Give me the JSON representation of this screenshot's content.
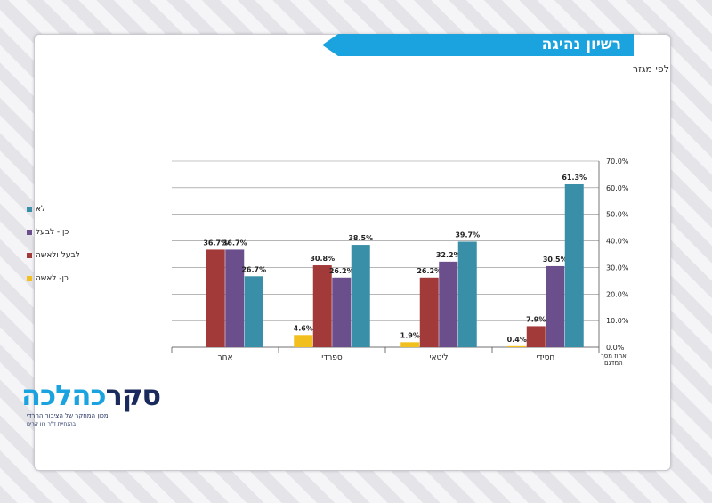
{
  "title": "רשיון נהיגה",
  "subtitle": "לפי מגזר",
  "logo": {
    "text_dark": "סקר",
    "text_accent": "כהלכה",
    "tagline": "מכון המחקר של הציבור החרדי",
    "credit": "בהנחיית ד\"ר רון קרים"
  },
  "colors": {
    "banner": "#1aa3df",
    "series": [
      "#3a8fa8",
      "#6b4f8c",
      "#a33a3a",
      "#f2c01e"
    ]
  },
  "chart_data": {
    "type": "bar",
    "categories": [
      "אחר",
      "ספרדי",
      "ליטאי",
      "חסידי"
    ],
    "series": [
      {
        "name": "כן- לאשה",
        "values": [
          null,
          4.6,
          1.9,
          0.4
        ],
        "labels": [
          "",
          "4.6%",
          "1.9%",
          "0.4%"
        ]
      },
      {
        "name": "לבעל ולאשה",
        "values": [
          36.7,
          30.8,
          26.2,
          7.9
        ],
        "labels": [
          "36.7%",
          "30.8%",
          "26.2%",
          "7.9%"
        ]
      },
      {
        "name": "כן - לבעל",
        "values": [
          36.7,
          26.2,
          32.2,
          30.5
        ],
        "labels": [
          "36.7%",
          "26.2%",
          "32.2%",
          "30.5%"
        ]
      },
      {
        "name": "לא",
        "values": [
          26.7,
          38.5,
          39.7,
          61.3
        ],
        "labels": [
          "26.7%",
          "38.5%",
          "39.7%",
          "61.3%"
        ]
      }
    ],
    "ylim": [
      0,
      70
    ],
    "yticks": [
      "0.0%",
      "10.0%",
      "20.0%",
      "30.0%",
      "40.0%",
      "50.0%",
      "60.0%",
      "70.0%"
    ],
    "axis_note": "אחוז מסך המדגם",
    "grid": true,
    "legend_position": "left",
    "legend_order": [
      "לא",
      "כן - לבעל",
      "לבעל ולאשה",
      "כן- לאשה"
    ]
  }
}
